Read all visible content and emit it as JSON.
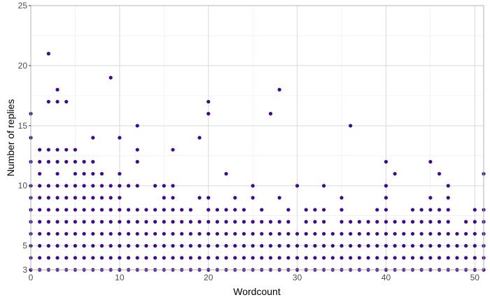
{
  "chart_data": {
    "type": "scatter",
    "xlabel": "Wordcount",
    "ylabel": "Number of replies",
    "xlim": [
      0,
      51
    ],
    "ylim": [
      3,
      25
    ],
    "x_ticks": [
      0,
      10,
      20,
      30,
      40,
      50
    ],
    "y_ticks": [
      3,
      5,
      10,
      15,
      20,
      25
    ],
    "grid": true,
    "colors": {
      "point": "#3d0a91",
      "grid_major": "#d9d9d9",
      "grid_minor": "#ebebeb",
      "panel_border": "#b3b3b3"
    },
    "points": [
      [
        0,
        3
      ],
      [
        0,
        4
      ],
      [
        0,
        5
      ],
      [
        0,
        6
      ],
      [
        0,
        7
      ],
      [
        0,
        8
      ],
      [
        0,
        9
      ],
      [
        0,
        10
      ],
      [
        0,
        12
      ],
      [
        0,
        14
      ],
      [
        0,
        16
      ],
      [
        1,
        3
      ],
      [
        1,
        4
      ],
      [
        1,
        5
      ],
      [
        1,
        6
      ],
      [
        1,
        7
      ],
      [
        1,
        8
      ],
      [
        1,
        9
      ],
      [
        1,
        10
      ],
      [
        1,
        11
      ],
      [
        1,
        12
      ],
      [
        1,
        13
      ],
      [
        2,
        3
      ],
      [
        2,
        4
      ],
      [
        2,
        5
      ],
      [
        2,
        6
      ],
      [
        2,
        7
      ],
      [
        2,
        8
      ],
      [
        2,
        9
      ],
      [
        2,
        10
      ],
      [
        2,
        12
      ],
      [
        2,
        13
      ],
      [
        2,
        17
      ],
      [
        2,
        21
      ],
      [
        3,
        3
      ],
      [
        3,
        4
      ],
      [
        3,
        5
      ],
      [
        3,
        6
      ],
      [
        3,
        7
      ],
      [
        3,
        8
      ],
      [
        3,
        9
      ],
      [
        3,
        10
      ],
      [
        3,
        11
      ],
      [
        3,
        12
      ],
      [
        3,
        13
      ],
      [
        3,
        17
      ],
      [
        3,
        18
      ],
      [
        4,
        3
      ],
      [
        4,
        4
      ],
      [
        4,
        5
      ],
      [
        4,
        6
      ],
      [
        4,
        7
      ],
      [
        4,
        8
      ],
      [
        4,
        9
      ],
      [
        4,
        10
      ],
      [
        4,
        12
      ],
      [
        4,
        13
      ],
      [
        4,
        17
      ],
      [
        5,
        3
      ],
      [
        5,
        4
      ],
      [
        5,
        5
      ],
      [
        5,
        6
      ],
      [
        5,
        7
      ],
      [
        5,
        8
      ],
      [
        5,
        9
      ],
      [
        5,
        10
      ],
      [
        5,
        11
      ],
      [
        5,
        12
      ],
      [
        5,
        13
      ],
      [
        6,
        3
      ],
      [
        6,
        4
      ],
      [
        6,
        5
      ],
      [
        6,
        6
      ],
      [
        6,
        7
      ],
      [
        6,
        8
      ],
      [
        6,
        9
      ],
      [
        6,
        10
      ],
      [
        6,
        11
      ],
      [
        6,
        12
      ],
      [
        7,
        3
      ],
      [
        7,
        4
      ],
      [
        7,
        5
      ],
      [
        7,
        6
      ],
      [
        7,
        7
      ],
      [
        7,
        8
      ],
      [
        7,
        9
      ],
      [
        7,
        10
      ],
      [
        7,
        11
      ],
      [
        7,
        12
      ],
      [
        7,
        14
      ],
      [
        8,
        3
      ],
      [
        8,
        4
      ],
      [
        8,
        5
      ],
      [
        8,
        6
      ],
      [
        8,
        7
      ],
      [
        8,
        8
      ],
      [
        8,
        9
      ],
      [
        8,
        10
      ],
      [
        8,
        11
      ],
      [
        9,
        3
      ],
      [
        9,
        4
      ],
      [
        9,
        5
      ],
      [
        9,
        6
      ],
      [
        9,
        7
      ],
      [
        9,
        8
      ],
      [
        9,
        9
      ],
      [
        9,
        10
      ],
      [
        9,
        19
      ],
      [
        10,
        3
      ],
      [
        10,
        4
      ],
      [
        10,
        5
      ],
      [
        10,
        6
      ],
      [
        10,
        7
      ],
      [
        10,
        8
      ],
      [
        10,
        9
      ],
      [
        10,
        10
      ],
      [
        10,
        11
      ],
      [
        10,
        14
      ],
      [
        11,
        3
      ],
      [
        11,
        4
      ],
      [
        11,
        5
      ],
      [
        11,
        6
      ],
      [
        11,
        7
      ],
      [
        11,
        8
      ],
      [
        11,
        10
      ],
      [
        12,
        3
      ],
      [
        12,
        4
      ],
      [
        12,
        5
      ],
      [
        12,
        6
      ],
      [
        12,
        7
      ],
      [
        12,
        8
      ],
      [
        12,
        10
      ],
      [
        12,
        12
      ],
      [
        12,
        13
      ],
      [
        12,
        15
      ],
      [
        13,
        3
      ],
      [
        13,
        4
      ],
      [
        13,
        5
      ],
      [
        13,
        6
      ],
      [
        13,
        7
      ],
      [
        13,
        8
      ],
      [
        14,
        3
      ],
      [
        14,
        4
      ],
      [
        14,
        5
      ],
      [
        14,
        6
      ],
      [
        14,
        7
      ],
      [
        14,
        8
      ],
      [
        14,
        10
      ],
      [
        15,
        3
      ],
      [
        15,
        4
      ],
      [
        15,
        5
      ],
      [
        15,
        6
      ],
      [
        15,
        7
      ],
      [
        15,
        8
      ],
      [
        15,
        9
      ],
      [
        15,
        10
      ],
      [
        16,
        3
      ],
      [
        16,
        4
      ],
      [
        16,
        5
      ],
      [
        16,
        6
      ],
      [
        16,
        7
      ],
      [
        16,
        8
      ],
      [
        16,
        9
      ],
      [
        16,
        10
      ],
      [
        16,
        13
      ],
      [
        17,
        3
      ],
      [
        17,
        4
      ],
      [
        17,
        5
      ],
      [
        17,
        6
      ],
      [
        17,
        7
      ],
      [
        17,
        8
      ],
      [
        18,
        3
      ],
      [
        18,
        4
      ],
      [
        18,
        5
      ],
      [
        18,
        6
      ],
      [
        18,
        7
      ],
      [
        18,
        8
      ],
      [
        19,
        3
      ],
      [
        19,
        4
      ],
      [
        19,
        5
      ],
      [
        19,
        6
      ],
      [
        19,
        7
      ],
      [
        19,
        9
      ],
      [
        19,
        14
      ],
      [
        20,
        3
      ],
      [
        20,
        4
      ],
      [
        20,
        5
      ],
      [
        20,
        6
      ],
      [
        20,
        7
      ],
      [
        20,
        8
      ],
      [
        20,
        9
      ],
      [
        20,
        16
      ],
      [
        20,
        17
      ],
      [
        21,
        3
      ],
      [
        21,
        4
      ],
      [
        21,
        5
      ],
      [
        21,
        6
      ],
      [
        21,
        7
      ],
      [
        21,
        8
      ],
      [
        22,
        3
      ],
      [
        22,
        4
      ],
      [
        22,
        5
      ],
      [
        22,
        6
      ],
      [
        22,
        7
      ],
      [
        22,
        8
      ],
      [
        22,
        11
      ],
      [
        23,
        3
      ],
      [
        23,
        4
      ],
      [
        23,
        5
      ],
      [
        23,
        6
      ],
      [
        23,
        7
      ],
      [
        23,
        8
      ],
      [
        23,
        9
      ],
      [
        24,
        3
      ],
      [
        24,
        4
      ],
      [
        24,
        5
      ],
      [
        24,
        6
      ],
      [
        24,
        7
      ],
      [
        24,
        8
      ],
      [
        25,
        3
      ],
      [
        25,
        4
      ],
      [
        25,
        5
      ],
      [
        25,
        6
      ],
      [
        25,
        7
      ],
      [
        25,
        9
      ],
      [
        25,
        10
      ],
      [
        26,
        3
      ],
      [
        26,
        4
      ],
      [
        26,
        5
      ],
      [
        26,
        6
      ],
      [
        26,
        7
      ],
      [
        26,
        8
      ],
      [
        27,
        3
      ],
      [
        27,
        4
      ],
      [
        27,
        5
      ],
      [
        27,
        6
      ],
      [
        27,
        7
      ],
      [
        27,
        16
      ],
      [
        28,
        3
      ],
      [
        28,
        4
      ],
      [
        28,
        5
      ],
      [
        28,
        6
      ],
      [
        28,
        7
      ],
      [
        28,
        9
      ],
      [
        28,
        18
      ],
      [
        29,
        3
      ],
      [
        29,
        4
      ],
      [
        29,
        5
      ],
      [
        29,
        6
      ],
      [
        29,
        7
      ],
      [
        29,
        8
      ],
      [
        30,
        3
      ],
      [
        30,
        4
      ],
      [
        30,
        5
      ],
      [
        30,
        6
      ],
      [
        30,
        10
      ],
      [
        31,
        3
      ],
      [
        31,
        4
      ],
      [
        31,
        5
      ],
      [
        31,
        6
      ],
      [
        31,
        7
      ],
      [
        31,
        8
      ],
      [
        32,
        3
      ],
      [
        32,
        4
      ],
      [
        32,
        5
      ],
      [
        32,
        6
      ],
      [
        32,
        7
      ],
      [
        32,
        8
      ],
      [
        33,
        3
      ],
      [
        33,
        4
      ],
      [
        33,
        5
      ],
      [
        33,
        6
      ],
      [
        33,
        7
      ],
      [
        33,
        8
      ],
      [
        33,
        10
      ],
      [
        34,
        3
      ],
      [
        34,
        4
      ],
      [
        34,
        5
      ],
      [
        34,
        6
      ],
      [
        35,
        3
      ],
      [
        35,
        4
      ],
      [
        35,
        5
      ],
      [
        35,
        6
      ],
      [
        35,
        7
      ],
      [
        35,
        8
      ],
      [
        35,
        9
      ],
      [
        36,
        3
      ],
      [
        36,
        4
      ],
      [
        36,
        5
      ],
      [
        36,
        6
      ],
      [
        36,
        7
      ],
      [
        36,
        15
      ],
      [
        37,
        3
      ],
      [
        37,
        4
      ],
      [
        37,
        5
      ],
      [
        37,
        6
      ],
      [
        37,
        7
      ],
      [
        38,
        3
      ],
      [
        38,
        4
      ],
      [
        38,
        5
      ],
      [
        38,
        6
      ],
      [
        38,
        7
      ],
      [
        39,
        3
      ],
      [
        39,
        4
      ],
      [
        39,
        5
      ],
      [
        39,
        6
      ],
      [
        39,
        7
      ],
      [
        39,
        8
      ],
      [
        40,
        3
      ],
      [
        40,
        4
      ],
      [
        40,
        5
      ],
      [
        40,
        6
      ],
      [
        40,
        7
      ],
      [
        40,
        8
      ],
      [
        40,
        9
      ],
      [
        40,
        10
      ],
      [
        40,
        12
      ],
      [
        41,
        3
      ],
      [
        41,
        4
      ],
      [
        41,
        5
      ],
      [
        41,
        6
      ],
      [
        41,
        7
      ],
      [
        41,
        11
      ],
      [
        42,
        3
      ],
      [
        42,
        4
      ],
      [
        42,
        5
      ],
      [
        42,
        6
      ],
      [
        42,
        7
      ],
      [
        43,
        3
      ],
      [
        43,
        4
      ],
      [
        43,
        5
      ],
      [
        43,
        6
      ],
      [
        43,
        7
      ],
      [
        43,
        8
      ],
      [
        44,
        3
      ],
      [
        44,
        4
      ],
      [
        44,
        5
      ],
      [
        44,
        6
      ],
      [
        44,
        7
      ],
      [
        44,
        8
      ],
      [
        45,
        3
      ],
      [
        45,
        4
      ],
      [
        45,
        5
      ],
      [
        45,
        6
      ],
      [
        45,
        7
      ],
      [
        45,
        8
      ],
      [
        45,
        9
      ],
      [
        45,
        12
      ],
      [
        46,
        3
      ],
      [
        46,
        4
      ],
      [
        46,
        5
      ],
      [
        46,
        6
      ],
      [
        46,
        7
      ],
      [
        46,
        8
      ],
      [
        46,
        11
      ],
      [
        47,
        3
      ],
      [
        47,
        4
      ],
      [
        47,
        5
      ],
      [
        47,
        6
      ],
      [
        47,
        7
      ],
      [
        47,
        8
      ],
      [
        47,
        9
      ],
      [
        47,
        10
      ],
      [
        48,
        3
      ],
      [
        48,
        4
      ],
      [
        48,
        5
      ],
      [
        48,
        6
      ],
      [
        49,
        3
      ],
      [
        49,
        4
      ],
      [
        49,
        5
      ],
      [
        49,
        6
      ],
      [
        49,
        7
      ],
      [
        50,
        3
      ],
      [
        50,
        4
      ],
      [
        50,
        5
      ],
      [
        50,
        6
      ],
      [
        50,
        7
      ],
      [
        50,
        8
      ],
      [
        51,
        3
      ],
      [
        51,
        4
      ],
      [
        51,
        5
      ],
      [
        51,
        6
      ],
      [
        51,
        7
      ],
      [
        51,
        8
      ],
      [
        51,
        11
      ]
    ]
  }
}
